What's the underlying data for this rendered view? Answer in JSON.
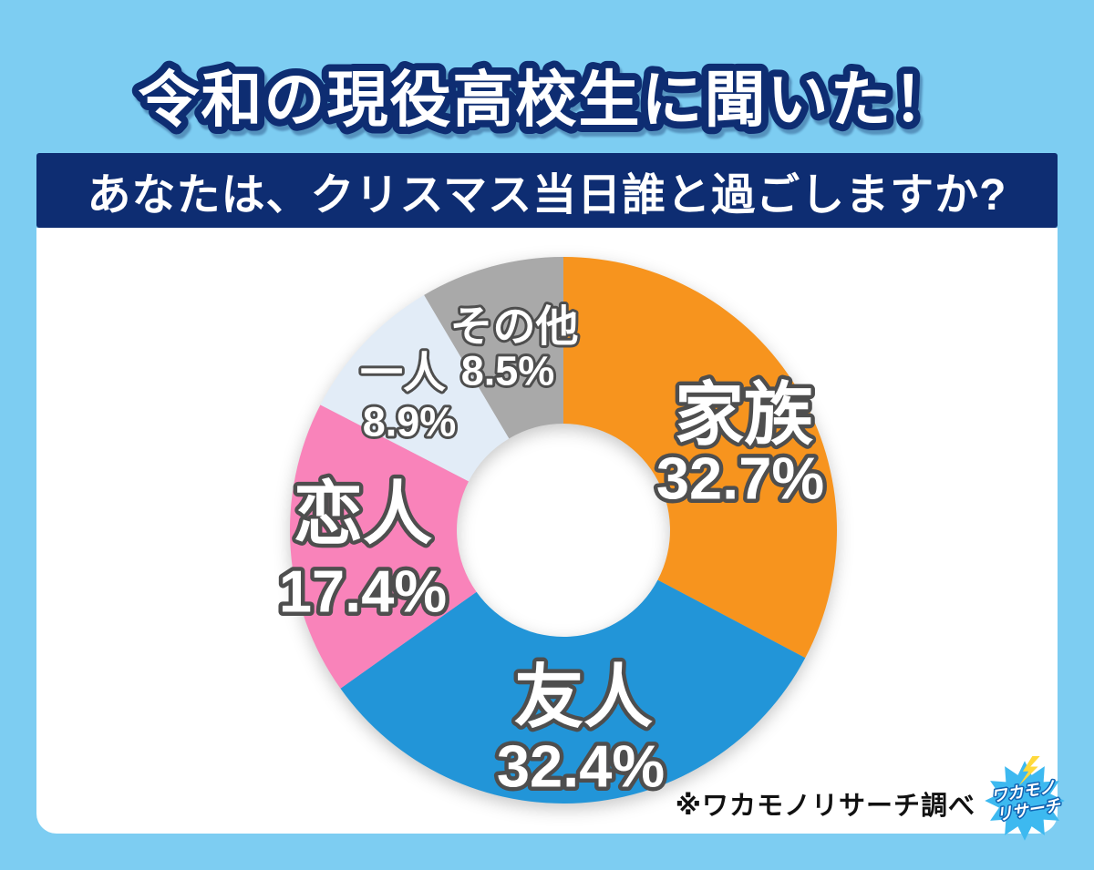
{
  "page": {
    "background_color": "#7DCDF2",
    "panel_color": "#FFFFFF",
    "banner_color": "#0E2D72"
  },
  "header": {
    "title": "令和の現役高校生に聞いた！",
    "question": "あなたは、クリスマス当日誰と過ごしますか?"
  },
  "chart_data": {
    "type": "pie",
    "style": "donut",
    "title": "あなたは、クリスマス当日誰と過ごしますか?",
    "unit": "%",
    "start_angle_deg": 0,
    "direction": "clockwise",
    "segments": [
      {
        "label": "家族",
        "value": 32.7,
        "display": "32.7%",
        "color": "#F7941E"
      },
      {
        "label": "友人",
        "value": 32.4,
        "display": "32.4%",
        "color": "#2295D8"
      },
      {
        "label": "恋人",
        "value": 17.4,
        "display": "17.4%",
        "color": "#F983BA"
      },
      {
        "label": "一人",
        "value": 8.9,
        "display": "8.9%",
        "color": "#E2ECF7"
      },
      {
        "label": "その他",
        "value": 8.5,
        "display": "8.5%",
        "color": "#A9A9A9"
      }
    ]
  },
  "footer": {
    "source_note": "※ワカモノリサーチ調べ",
    "logo_line1": "ワカモノ",
    "logo_line2": "リサーチ"
  }
}
